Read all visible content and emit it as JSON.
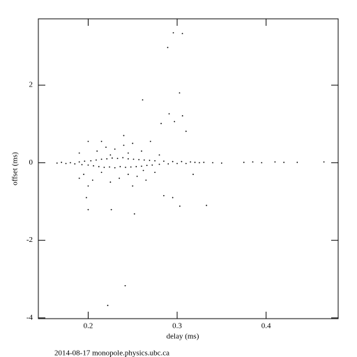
{
  "chart_data": {
    "type": "scatter",
    "x_label": "delay (ms)",
    "y_label": "offset (ms)",
    "footer": "2014-08-17  monopole.physics.ubc.ca",
    "color": "#000000",
    "xlim": [
      0.144,
      0.481
    ],
    "ylim": [
      -4.02,
      3.71
    ],
    "xticks": [
      0.2,
      0.3,
      0.4
    ],
    "yticks": [
      -4,
      -2,
      0,
      2
    ],
    "x": [
      0.165,
      0.17,
      0.175,
      0.18,
      0.185,
      0.19,
      0.193,
      0.196,
      0.2,
      0.203,
      0.206,
      0.209,
      0.212,
      0.215,
      0.218,
      0.221,
      0.224,
      0.227,
      0.23,
      0.233,
      0.236,
      0.239,
      0.242,
      0.245,
      0.248,
      0.251,
      0.254,
      0.257,
      0.26,
      0.263,
      0.266,
      0.269,
      0.272,
      0.275,
      0.28,
      0.285,
      0.29,
      0.295,
      0.3,
      0.305,
      0.31,
      0.315,
      0.32,
      0.325,
      0.33,
      0.34,
      0.35,
      0.375,
      0.385,
      0.395,
      0.41,
      0.42,
      0.435,
      0.465,
      0.19,
      0.195,
      0.2,
      0.205,
      0.21,
      0.215,
      0.22,
      0.225,
      0.23,
      0.235,
      0.24,
      0.245,
      0.25,
      0.255,
      0.26,
      0.265,
      0.27,
      0.275,
      0.28,
      0.285,
      0.295,
      0.2,
      0.198,
      0.215,
      0.25,
      0.24,
      0.19,
      0.225,
      0.245,
      0.262,
      0.318,
      0.2957,
      0.3059,
      0.2894,
      0.3027,
      0.2612,
      0.291,
      0.306,
      0.297,
      0.282,
      0.31,
      0.2,
      0.226,
      0.252,
      0.303,
      0.333,
      0.2416,
      0.222
    ],
    "y": [
      -0.01,
      0.01,
      -0.02,
      0.0,
      -0.03,
      0.02,
      -0.05,
      0.04,
      -0.06,
      0.05,
      -0.08,
      0.07,
      -0.1,
      0.09,
      -0.12,
      0.1,
      -0.11,
      0.12,
      -0.13,
      0.11,
      -0.1,
      0.13,
      -0.12,
      0.1,
      -0.11,
      0.09,
      -0.1,
      0.08,
      -0.09,
      0.07,
      -0.07,
      0.06,
      -0.06,
      0.05,
      -0.04,
      0.04,
      -0.03,
      0.03,
      -0.02,
      0.03,
      -0.02,
      0.02,
      0.01,
      0.0,
      0.01,
      0.0,
      -0.01,
      0.01,
      0.02,
      0.0,
      0.02,
      0.01,
      0.01,
      0.02,
      0.25,
      -0.3,
      0.55,
      -0.45,
      0.3,
      -0.25,
      0.4,
      -0.5,
      0.35,
      -0.4,
      0.45,
      -0.3,
      0.5,
      -0.35,
      0.3,
      -0.45,
      0.55,
      -0.25,
      0.2,
      -0.85,
      -0.9,
      -0.6,
      -0.9,
      0.55,
      -0.6,
      0.7,
      -0.4,
      0.2,
      0.25,
      -0.2,
      -0.3,
      3.35,
      3.33,
      2.97,
      1.8,
      1.62,
      1.26,
      1.21,
      1.06,
      1.01,
      0.81,
      -1.21,
      -1.21,
      -1.32,
      -1.12,
      -1.1,
      -3.17,
      -3.68
    ]
  }
}
